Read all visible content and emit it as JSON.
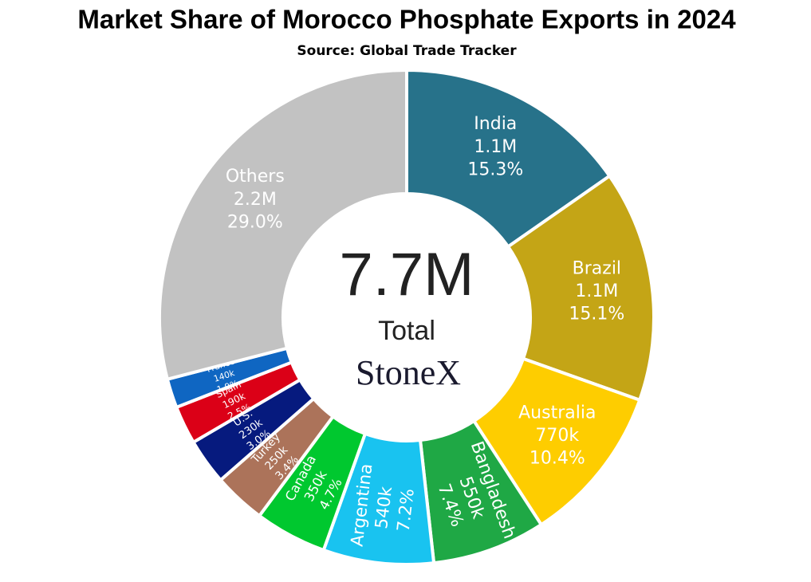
{
  "chart_data": {
    "type": "donut",
    "title": "Market Share of Morocco Phosphate Exports in 2024",
    "subtitle": "Source: Global Trade Tracker",
    "categories": [
      "India",
      "Brazil",
      "Australia",
      "Bangladesh",
      "Argentina",
      "Canada",
      "Turkey",
      "U.S.",
      "Spain",
      "France",
      "Others"
    ],
    "values": [
      15.3,
      15.1,
      10.4,
      7.4,
      7.2,
      4.7,
      3.4,
      3.0,
      2.5,
      1.9,
      29.0
    ],
    "value_labels": [
      "15.3%",
      "15.1%",
      "10.4%",
      "7.4%",
      "7.2%",
      "4.7%",
      "3.4%",
      "3.0%",
      "2.5%",
      "1.9%",
      "29.0%"
    ],
    "amounts": [
      1100000,
      1100000,
      770000,
      550000,
      540000,
      350000,
      250000,
      230000,
      190000,
      140000,
      2200000
    ],
    "amount_labels": [
      "1.1M",
      "1.1M",
      "770k",
      "550k",
      "540k",
      "350k",
      "250k",
      "230k",
      "190k",
      "140k",
      "2.2M"
    ],
    "colors": [
      "#27728a",
      "#c4a516",
      "#fecd00",
      "#1fa845",
      "#19c3f0",
      "#00c82f",
      "#ac735a",
      "#061a7e",
      "#db0017",
      "#0f66c2",
      "#c2c2c2"
    ],
    "total": 7700000,
    "total_label": "7.7M",
    "total_caption": "Total",
    "logo": "StoneX"
  }
}
